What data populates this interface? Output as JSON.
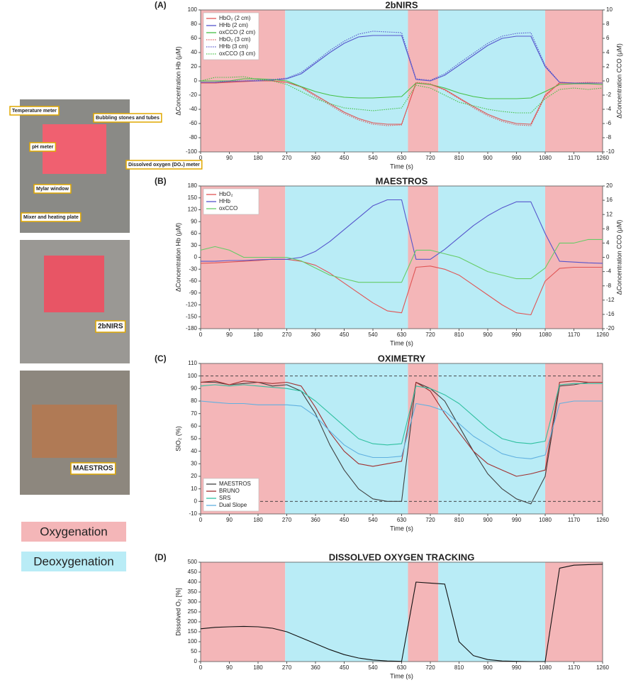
{
  "figure": {
    "photo_labels": [
      "Temperature meter",
      "Bubbling stones and tubes",
      "pH meter",
      "Dissolved oxygen (DO₂) meter",
      "Mylar window",
      "Mixer and heating plate",
      "2bNIRS",
      "MAESTROS"
    ],
    "legend": [
      {
        "label": "Oxygenation",
        "color": "#f4b6b8"
      },
      {
        "label": "Deoxygenation",
        "color": "#b9ecf6"
      }
    ]
  },
  "chart_data": [
    {
      "type": "line",
      "panel": "(A)",
      "title": "2bNIRS",
      "x_label": "Time (s)",
      "y_label": "ΔConcentration Hb (μM)",
      "y2_label": "ΔConcentration CCO (μM)",
      "xlim": [
        0,
        1260
      ],
      "xticks": [
        0,
        90,
        180,
        270,
        360,
        450,
        540,
        630,
        720,
        810,
        900,
        990,
        1080,
        1170,
        1260
      ],
      "ylim": [
        -100,
        100
      ],
      "yticks": [
        -100,
        -80,
        -60,
        -40,
        -20,
        0,
        20,
        40,
        60,
        80,
        100
      ],
      "y2lim": [
        -10,
        10
      ],
      "y2ticks": [
        -10,
        -8,
        -6,
        -4,
        -2,
        0,
        2,
        4,
        6,
        8,
        10
      ],
      "legend": "upper left",
      "phases": [
        {
          "start": 0,
          "end": 265,
          "color": "#f4b6b8"
        },
        {
          "start": 265,
          "end": 650,
          "color": "#b9ecf6"
        },
        {
          "start": 650,
          "end": 745,
          "color": "#f4b6b8"
        },
        {
          "start": 745,
          "end": 1080,
          "color": "#b9ecf6"
        },
        {
          "start": 1080,
          "end": 1260,
          "color": "#f4b6b8"
        }
      ],
      "x": [
        0,
        45,
        90,
        135,
        180,
        225,
        270,
        315,
        360,
        405,
        450,
        495,
        540,
        585,
        630,
        675,
        720,
        765,
        810,
        855,
        900,
        945,
        990,
        1035,
        1080,
        1125,
        1170,
        1215,
        1260
      ],
      "series": [
        {
          "name": "HbO₂ (2 cm)",
          "color": "#e05555",
          "values": [
            -3,
            -3,
            -2,
            -1,
            0,
            0,
            -2,
            -8,
            -20,
            -32,
            -44,
            -53,
            -59,
            -61,
            -61,
            -3,
            -5,
            -12,
            -24,
            -36,
            -47,
            -55,
            -60,
            -61,
            -20,
            -3,
            -3,
            -3,
            -3
          ]
        },
        {
          "name": "HHb (2 cm)",
          "color": "#5555cc",
          "values": [
            -2,
            -2,
            -1,
            0,
            0,
            1,
            3,
            10,
            25,
            40,
            53,
            62,
            64,
            64,
            64,
            2,
            0,
            8,
            22,
            36,
            50,
            60,
            63,
            63,
            20,
            -2,
            -3,
            -3,
            -3
          ]
        },
        {
          "name": "oxCCO (2 cm)",
          "color": "#44c044",
          "axis": "y2",
          "values": [
            0,
            0,
            0,
            0.3,
            0.3,
            0.2,
            0,
            -0.8,
            -1.5,
            -2,
            -2.3,
            -2.4,
            -2.4,
            -2.3,
            -2.2,
            -0.3,
            -0.5,
            -1,
            -1.7,
            -2.2,
            -2.5,
            -2.5,
            -2.5,
            -2.4,
            -1.5,
            -0.5,
            -0.4,
            -0.4,
            -0.5
          ]
        },
        {
          "name": "HbO₂ (3 cm)",
          "color": "#e05555",
          "style": "dotted",
          "values": [
            -2,
            -3,
            -1,
            0,
            1,
            0,
            -2,
            -9,
            -22,
            -34,
            -46,
            -55,
            -61,
            -63,
            -62,
            -2,
            -4,
            -13,
            -25,
            -38,
            -49,
            -57,
            -62,
            -63,
            -22,
            -2,
            -3,
            -2,
            -3
          ]
        },
        {
          "name": "HHb (3 cm)",
          "color": "#5555cc",
          "style": "dotted",
          "values": [
            -2,
            -2,
            0,
            0,
            1,
            2,
            4,
            12,
            27,
            43,
            56,
            66,
            70,
            69,
            68,
            3,
            1,
            10,
            25,
            39,
            53,
            63,
            67,
            68,
            22,
            -2,
            -3,
            -3,
            -3
          ]
        },
        {
          "name": "oxCCO (3 cm)",
          "color": "#44c044",
          "style": "dotted",
          "axis": "y2",
          "values": [
            0,
            0.5,
            0.5,
            0.6,
            0.2,
            0,
            -0.5,
            -1.5,
            -2.5,
            -3.2,
            -3.8,
            -4,
            -4.2,
            -4,
            -3.8,
            -0.6,
            -1,
            -2,
            -3,
            -3.5,
            -4,
            -4.3,
            -4.5,
            -4.5,
            -2.5,
            -1.2,
            -1,
            -1.2,
            -1
          ]
        }
      ]
    },
    {
      "type": "line",
      "panel": "(B)",
      "title": "MAESTROS",
      "x_label": "Time (s)",
      "y_label": "ΔConcentration Hb (μM)",
      "y2_label": "ΔConcentration CCO (μM)",
      "xlim": [
        0,
        1260
      ],
      "xticks": [
        0,
        90,
        180,
        270,
        360,
        450,
        540,
        630,
        720,
        810,
        900,
        990,
        1080,
        1170,
        1260
      ],
      "ylim": [
        -180,
        180
      ],
      "yticks": [
        -180,
        -150,
        -120,
        -90,
        -60,
        -30,
        0,
        30,
        60,
        90,
        120,
        150,
        180
      ],
      "y2lim": [
        -20,
        20
      ],
      "y2ticks": [
        -20,
        -16,
        -12,
        -8,
        -4,
        0,
        4,
        8,
        12,
        16,
        20
      ],
      "legend": "upper left",
      "phases": [
        {
          "start": 0,
          "end": 265,
          "color": "#f4b6b8"
        },
        {
          "start": 265,
          "end": 650,
          "color": "#b9ecf6"
        },
        {
          "start": 650,
          "end": 745,
          "color": "#f4b6b8"
        },
        {
          "start": 745,
          "end": 1080,
          "color": "#b9ecf6"
        },
        {
          "start": 1080,
          "end": 1260,
          "color": "#f4b6b8"
        }
      ],
      "x": [
        0,
        45,
        90,
        135,
        180,
        225,
        270,
        315,
        360,
        405,
        450,
        495,
        540,
        585,
        630,
        675,
        720,
        765,
        810,
        855,
        900,
        945,
        990,
        1035,
        1080,
        1125,
        1170,
        1215,
        1260
      ],
      "series": [
        {
          "name": "HbO₂",
          "color": "#e05555",
          "values": [
            -15,
            -14,
            -12,
            -10,
            -8,
            -5,
            -5,
            -10,
            -20,
            -40,
            -65,
            -90,
            -115,
            -135,
            -140,
            -25,
            -22,
            -30,
            -45,
            -70,
            -95,
            -120,
            -140,
            -145,
            -60,
            -28,
            -25,
            -25,
            -25
          ]
        },
        {
          "name": "HHb",
          "color": "#5555cc",
          "values": [
            -10,
            -10,
            -8,
            -8,
            -6,
            -5,
            -5,
            0,
            15,
            40,
            70,
            100,
            130,
            145,
            145,
            -5,
            -5,
            20,
            50,
            80,
            105,
            125,
            140,
            140,
            60,
            -10,
            -12,
            -14,
            -15
          ]
        },
        {
          "name": "oxCCO",
          "color": "#66cc66",
          "axis": "y2",
          "values": [
            2,
            3,
            2,
            0,
            0,
            0,
            0,
            -1,
            -3,
            -5,
            -6,
            -7,
            -7,
            -7,
            -7,
            2,
            2,
            1,
            0,
            -2,
            -4,
            -5,
            -6,
            -6,
            -3,
            4,
            4,
            5,
            5
          ]
        }
      ]
    },
    {
      "type": "line",
      "panel": "(C)",
      "title": "OXIMETRY",
      "x_label": "Time (s)",
      "y_label": "SIO₂ (%)",
      "xlim": [
        0,
        1260
      ],
      "xticks": [
        0,
        90,
        180,
        270,
        360,
        450,
        540,
        630,
        720,
        810,
        900,
        990,
        1080,
        1170,
        1260
      ],
      "ylim": [
        -10,
        110
      ],
      "yticks": [
        -10,
        0,
        10,
        20,
        30,
        40,
        50,
        60,
        70,
        80,
        90,
        100,
        110
      ],
      "reference_lines": [
        0,
        100
      ],
      "legend": "lower left",
      "phases": [
        {
          "start": 0,
          "end": 265,
          "color": "#f4b6b8"
        },
        {
          "start": 265,
          "end": 650,
          "color": "#b9ecf6"
        },
        {
          "start": 650,
          "end": 745,
          "color": "#f4b6b8"
        },
        {
          "start": 745,
          "end": 1080,
          "color": "#b9ecf6"
        },
        {
          "start": 1080,
          "end": 1260,
          "color": "#f4b6b8"
        }
      ],
      "x": [
        0,
        45,
        90,
        135,
        180,
        225,
        270,
        315,
        360,
        405,
        450,
        495,
        540,
        585,
        630,
        675,
        720,
        765,
        810,
        855,
        900,
        945,
        990,
        1035,
        1080,
        1125,
        1170,
        1215,
        1260
      ],
      "series": [
        {
          "name": "MAESTROS",
          "color": "#404040",
          "values": [
            95,
            95,
            93,
            94,
            95,
            92,
            93,
            88,
            70,
            45,
            25,
            10,
            2,
            0,
            0,
            95,
            90,
            80,
            60,
            40,
            22,
            10,
            2,
            -2,
            20,
            92,
            93,
            95,
            95
          ]
        },
        {
          "name": "BRUNO",
          "color": "#a03030",
          "values": [
            95,
            96,
            93,
            96,
            95,
            94,
            95,
            92,
            75,
            55,
            40,
            30,
            28,
            30,
            32,
            95,
            88,
            70,
            55,
            40,
            30,
            25,
            20,
            22,
            25,
            95,
            96,
            95,
            95
          ]
        },
        {
          "name": "SRS",
          "color": "#30c0a0",
          "values": [
            92,
            93,
            92,
            93,
            92,
            91,
            90,
            88,
            80,
            70,
            60,
            50,
            46,
            45,
            46,
            92,
            90,
            85,
            78,
            68,
            58,
            50,
            47,
            46,
            48,
            93,
            94,
            94,
            94
          ]
        },
        {
          "name": "Dual Slope",
          "color": "#60b0e0",
          "values": [
            80,
            79,
            78,
            78,
            77,
            77,
            77,
            76,
            68,
            56,
            45,
            38,
            35,
            35,
            36,
            78,
            76,
            72,
            62,
            52,
            45,
            38,
            35,
            34,
            37,
            78,
            80,
            80,
            80
          ]
        }
      ]
    },
    {
      "type": "line",
      "panel": "(D)",
      "title": "DISSOLVED OXYGEN TRACKING",
      "x_label": "Time (s)",
      "y_label": "Dissolved O₂ [%]",
      "xlim": [
        0,
        1260
      ],
      "xticks": [
        0,
        90,
        180,
        270,
        360,
        450,
        540,
        630,
        720,
        810,
        900,
        990,
        1080,
        1170,
        1260
      ],
      "ylim": [
        0,
        500
      ],
      "yticks": [
        0,
        50,
        100,
        150,
        200,
        250,
        300,
        350,
        400,
        450,
        500
      ],
      "phases": [
        {
          "start": 0,
          "end": 265,
          "color": "#f4b6b8"
        },
        {
          "start": 265,
          "end": 650,
          "color": "#b9ecf6"
        },
        {
          "start": 650,
          "end": 745,
          "color": "#f4b6b8"
        },
        {
          "start": 745,
          "end": 1080,
          "color": "#b9ecf6"
        },
        {
          "start": 1080,
          "end": 1260,
          "color": "#f4b6b8"
        }
      ],
      "x": [
        0,
        45,
        90,
        135,
        180,
        225,
        270,
        315,
        360,
        405,
        450,
        495,
        540,
        585,
        630,
        675,
        720,
        765,
        810,
        855,
        900,
        945,
        990,
        1035,
        1080,
        1125,
        1170,
        1215,
        1260
      ],
      "series": [
        {
          "name": "Dissolved O₂",
          "color": "#111111",
          "values": [
            165,
            172,
            175,
            177,
            175,
            168,
            150,
            120,
            90,
            60,
            35,
            18,
            8,
            3,
            1,
            400,
            395,
            390,
            100,
            30,
            10,
            3,
            1,
            0,
            0,
            470,
            485,
            488,
            490
          ]
        }
      ]
    }
  ]
}
